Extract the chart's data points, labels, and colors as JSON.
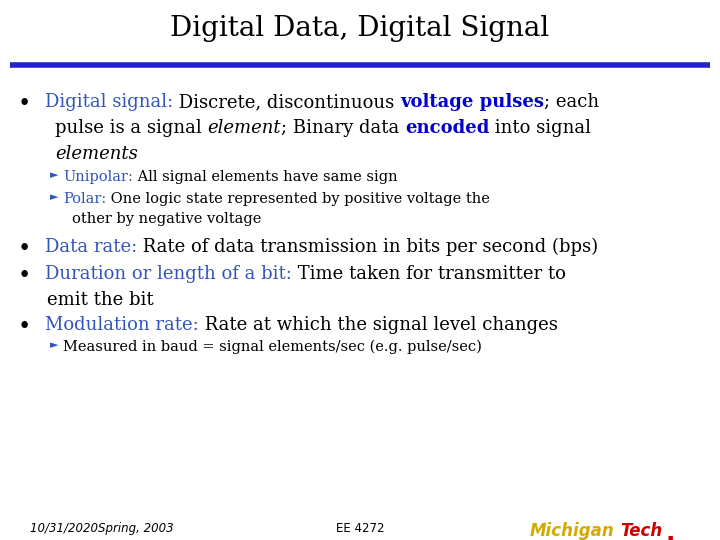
{
  "title": "Digital Data, Digital Signal",
  "bg_color": "#ffffff",
  "rule_color": "#2222cc",
  "blue_color": "#3355bb",
  "bold_blue_color": "#0000cc",
  "footer_left": "10/31/2020Spring, 2003",
  "footer_center": "EE 4272",
  "gold_color": "#d4a900",
  "red_color": "#cc0000"
}
